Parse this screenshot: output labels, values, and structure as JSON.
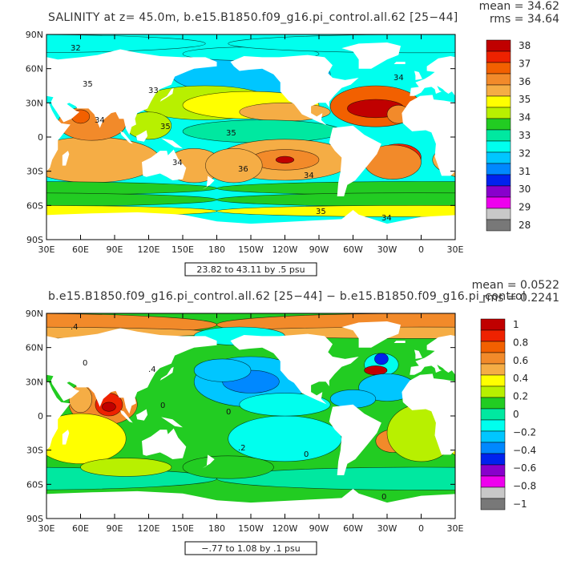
{
  "chart_data": [
    {
      "type": "heatmap",
      "title": "SALINITY at z=  45.0m, b.e15.B1850.f09_g16.pi_control.all.62 [25−44]",
      "stats": {
        "mean": "mean = 34.62",
        "rms": "rms = 34.64"
      },
      "x_ticks": [
        "30E",
        "60E",
        "90E",
        "120E",
        "150E",
        "180",
        "150W",
        "120W",
        "90W",
        "60W",
        "30W",
        "0",
        "30E"
      ],
      "y_ticks": [
        "90N",
        "60N",
        "30N",
        "0",
        "30S",
        "60S",
        "90S"
      ],
      "range_label": "23.82 to 43.11 by .5 psu",
      "colorbar": {
        "labels": [
          "38",
          "37",
          "36",
          "35",
          "34",
          "33",
          "32",
          "31",
          "30",
          "29",
          "28"
        ],
        "colors": [
          "#c00000",
          "#ee2200",
          "#f26000",
          "#f28a2a",
          "#f5ad45",
          "#ffff00",
          "#b8f000",
          "#22cc22",
          "#00e8a0",
          "#00ffee",
          "#00c6ff",
          "#0088ff",
          "#0022ee",
          "#8800cc",
          "#ee00ee",
          "#c8c8c8",
          "#787878"
        ]
      },
      "contour_labels": [
        "32",
        "33",
        "35",
        "34",
        "34",
        "35",
        "35",
        "36",
        "35",
        "34",
        "34",
        "34"
      ]
    },
    {
      "type": "heatmap",
      "title": "b.e15.B1850.f09_g16.pi_control.all.62 [25−44] − b.e15.B1850.f09_g16.pi_control",
      "stats": {
        "mean": "mean = 0.0522",
        "rms": "rms = 0.2241"
      },
      "x_ticks": [
        "30E",
        "60E",
        "90E",
        "120E",
        "150E",
        "180",
        "150W",
        "120W",
        "90W",
        "60W",
        "30W",
        "0",
        "30E"
      ],
      "y_ticks": [
        "90N",
        "60N",
        "30N",
        "0",
        "30S",
        "60S",
        "90S"
      ],
      "range_label": "−.77 to 1.08 by .1 psu",
      "colorbar": {
        "labels": [
          "1",
          "0.8",
          "0.6",
          "0.4",
          "0.2",
          "0",
          "−0.2",
          "−0.4",
          "−0.6",
          "−0.8",
          "−1"
        ],
        "colors": [
          "#c00000",
          "#ee2200",
          "#f26000",
          "#f28a2a",
          "#f5ad45",
          "#ffff00",
          "#b8f000",
          "#22cc22",
          "#00e8a0",
          "#00ffee",
          "#00c6ff",
          "#0088ff",
          "#0022ee",
          "#8800cc",
          "#ee00ee",
          "#c8c8c8",
          "#787878"
        ]
      },
      "contour_labels": [
        ".4",
        ".4",
        "0",
        "0",
        "0",
        "0",
        "0",
        ".2"
      ]
    }
  ]
}
